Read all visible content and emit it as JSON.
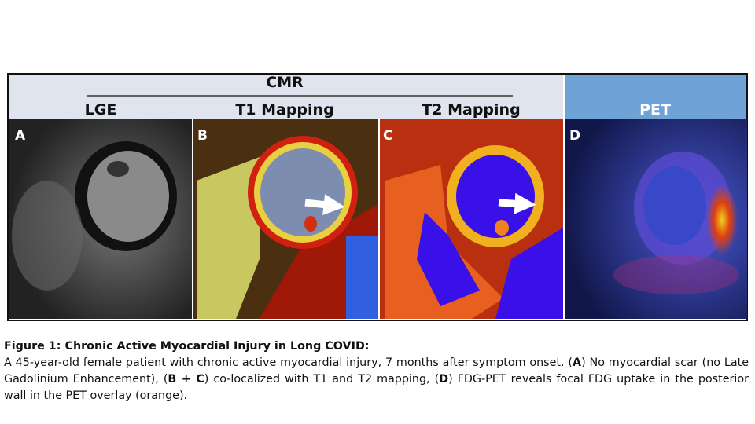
{
  "figure": {
    "group_label": "CMR",
    "panels": [
      {
        "letter": "A",
        "title": "LGE"
      },
      {
        "letter": "B",
        "title": "T1 Mapping"
      },
      {
        "letter": "C",
        "title": "T2 Mapping"
      },
      {
        "letter": "D",
        "title": "PET"
      }
    ]
  },
  "caption": {
    "title": "Figure 1: Chronic Active Myocardial Injury in Long COVID:",
    "body": [
      {
        "text": "A 45-year-old female patient with chronic active myocardial injury, 7 months after symptom onset. (",
        "bold": false
      },
      {
        "text": "A",
        "bold": true
      },
      {
        "text": ") No myocardial scar (no Late Gadolinium Enhancement), (",
        "bold": false
      },
      {
        "text": "B + C",
        "bold": true
      },
      {
        "text": ") co-localized with T1 and T2 mapping, (",
        "bold": false
      },
      {
        "text": "D",
        "bold": true
      },
      {
        "text": ") FDG-PET reveals focal FDG uptake in the posterior wall in the PET overlay (orange).",
        "bold": false
      }
    ]
  }
}
